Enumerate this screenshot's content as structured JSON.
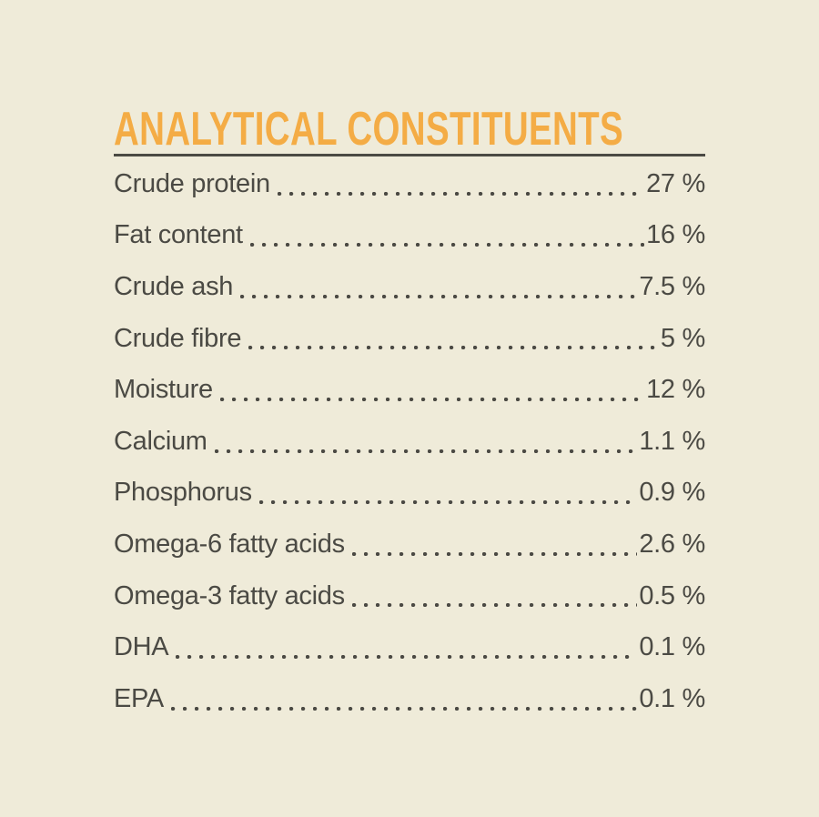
{
  "page": {
    "background": "#EFEBD9",
    "text_color": "#4B4A44",
    "accent_color": "#F4AC45"
  },
  "section": {
    "title": "ANALYTICAL CONSTITUENTS",
    "rows": [
      {
        "label": "Crude protein",
        "value": "27 %"
      },
      {
        "label": "Fat content",
        "value": "16 %"
      },
      {
        "label": "Crude ash",
        "value": "7.5 %"
      },
      {
        "label": "Crude fibre",
        "value": "5 %"
      },
      {
        "label": "Moisture",
        "value": "12 %"
      },
      {
        "label": "Calcium",
        "value": "1.1 %"
      },
      {
        "label": "Phosphorus",
        "value": "0.9 %"
      },
      {
        "label": "Omega-6 fatty acids",
        "value": "2.6 %"
      },
      {
        "label": "Omega-3 fatty acids",
        "value": "0.5 %"
      },
      {
        "label": "DHA",
        "value": "0.1 %"
      },
      {
        "label": "EPA",
        "value": "0.1 %"
      }
    ]
  }
}
